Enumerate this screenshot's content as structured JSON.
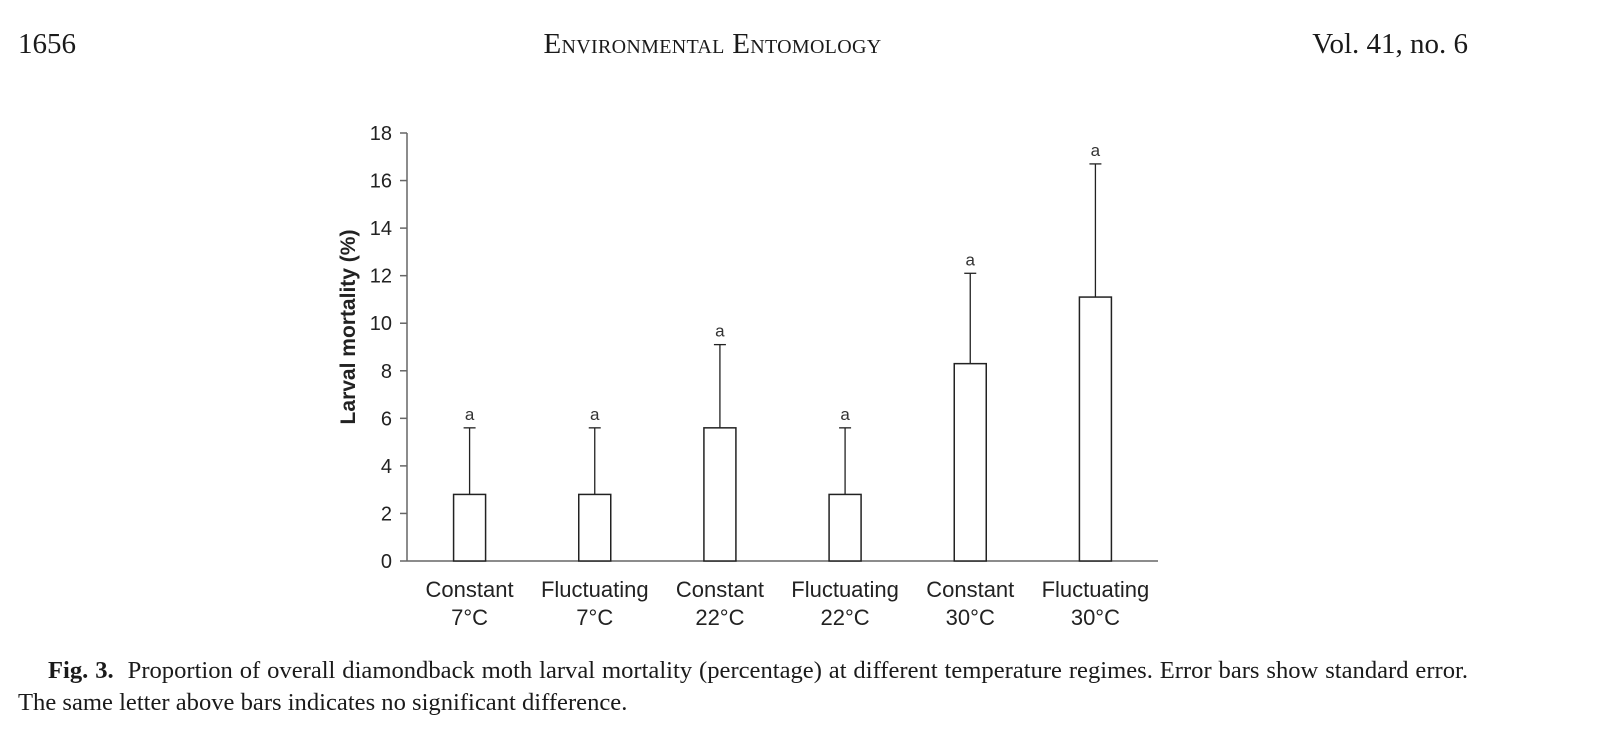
{
  "header": {
    "page_number": "1656",
    "journal": "Environmental Entomology",
    "volume_issue": "Vol. 41, no. 6"
  },
  "caption": {
    "label": "Fig. 3.",
    "text": "Proportion of overall diamondback moth larval mortality (percentage) at different temperature regimes. Error bars show standard error. The same letter above bars indicates no significant difference."
  },
  "chart_data": {
    "type": "bar",
    "title": "",
    "xlabel": "",
    "ylabel": "Larval mortality (%)",
    "ylim": [
      0,
      18
    ],
    "yticks": [
      0,
      2,
      4,
      6,
      8,
      10,
      12,
      14,
      16,
      18
    ],
    "grid": false,
    "categories": [
      [
        "Constant",
        "7°C"
      ],
      [
        "Fluctuating",
        "7°C"
      ],
      [
        "Constant",
        "22°C"
      ],
      [
        "Fluctuating",
        "22°C"
      ],
      [
        "Constant",
        "30°C"
      ],
      [
        "Fluctuating",
        "30°C"
      ]
    ],
    "values": [
      2.8,
      2.8,
      5.6,
      2.8,
      8.3,
      11.1
    ],
    "error": [
      2.8,
      2.8,
      3.5,
      2.8,
      3.8,
      5.6
    ],
    "significance_letters": [
      "a",
      "a",
      "a",
      "a",
      "a",
      "a"
    ],
    "colors": {
      "bar_fill": "#ffffff",
      "stroke": "#222222",
      "axis": "#666666"
    }
  }
}
